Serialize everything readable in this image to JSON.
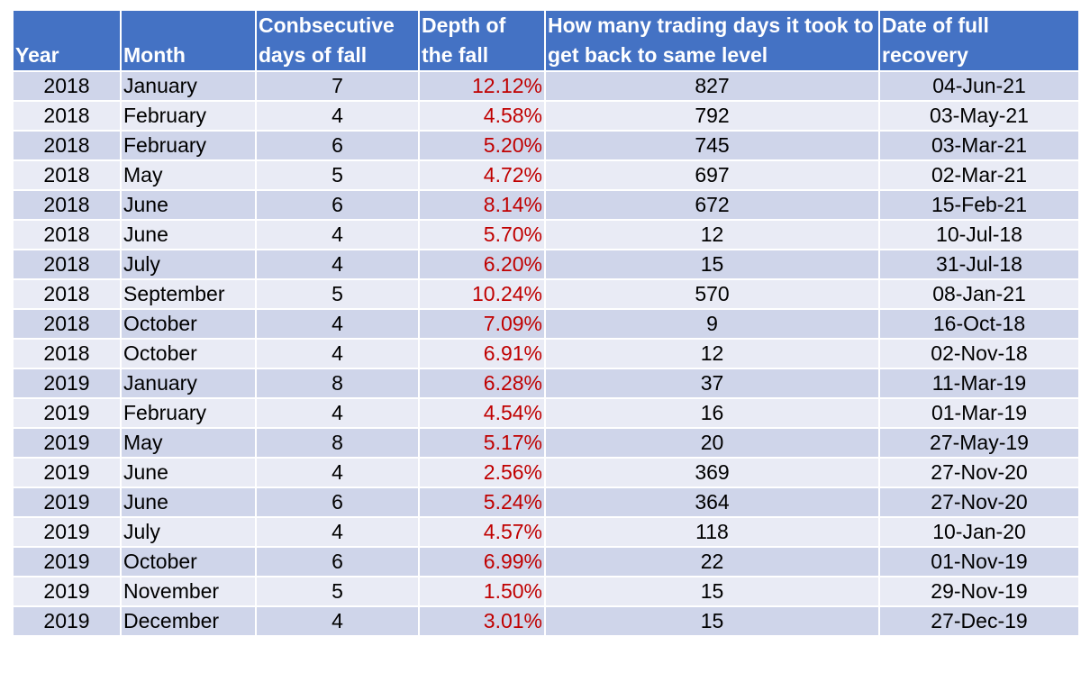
{
  "table": {
    "headers": [
      "Year",
      "Month",
      "Conbsecutive days of fall",
      "Depth of the fall",
      "How many trading days it took to get back to same level",
      "Date of full recovery"
    ],
    "rows": [
      [
        "2018",
        "January",
        "7",
        "12.12%",
        "827",
        "04-Jun-21"
      ],
      [
        "2018",
        "February",
        "4",
        "4.58%",
        "792",
        "03-May-21"
      ],
      [
        "2018",
        "February",
        "6",
        "5.20%",
        "745",
        "03-Mar-21"
      ],
      [
        "2018",
        "May",
        "5",
        "4.72%",
        "697",
        "02-Mar-21"
      ],
      [
        "2018",
        "June",
        "6",
        "8.14%",
        "672",
        "15-Feb-21"
      ],
      [
        "2018",
        "June",
        "4",
        "5.70%",
        "12",
        "10-Jul-18"
      ],
      [
        "2018",
        "July",
        "4",
        "6.20%",
        "15",
        "31-Jul-18"
      ],
      [
        "2018",
        "September",
        "5",
        "10.24%",
        "570",
        "08-Jan-21"
      ],
      [
        "2018",
        "October",
        "4",
        "7.09%",
        "9",
        "16-Oct-18"
      ],
      [
        "2018",
        "October",
        "4",
        "6.91%",
        "12",
        "02-Nov-18"
      ],
      [
        "2019",
        "January",
        "8",
        "6.28%",
        "37",
        "11-Mar-19"
      ],
      [
        "2019",
        "February",
        "4",
        "4.54%",
        "16",
        "01-Mar-19"
      ],
      [
        "2019",
        "May",
        "8",
        "5.17%",
        "20",
        "27-May-19"
      ],
      [
        "2019",
        "June",
        "4",
        "2.56%",
        "369",
        "27-Nov-20"
      ],
      [
        "2019",
        "June",
        "6",
        "5.24%",
        "364",
        "27-Nov-20"
      ],
      [
        "2019",
        "July",
        "4",
        "4.57%",
        "118",
        "10-Jan-20"
      ],
      [
        "2019",
        "October",
        "6",
        "6.99%",
        "22",
        "01-Nov-19"
      ],
      [
        "2019",
        "November",
        "5",
        "1.50%",
        "15",
        "29-Nov-19"
      ],
      [
        "2019",
        "December",
        "4",
        "3.01%",
        "15",
        "27-Dec-19"
      ]
    ]
  }
}
